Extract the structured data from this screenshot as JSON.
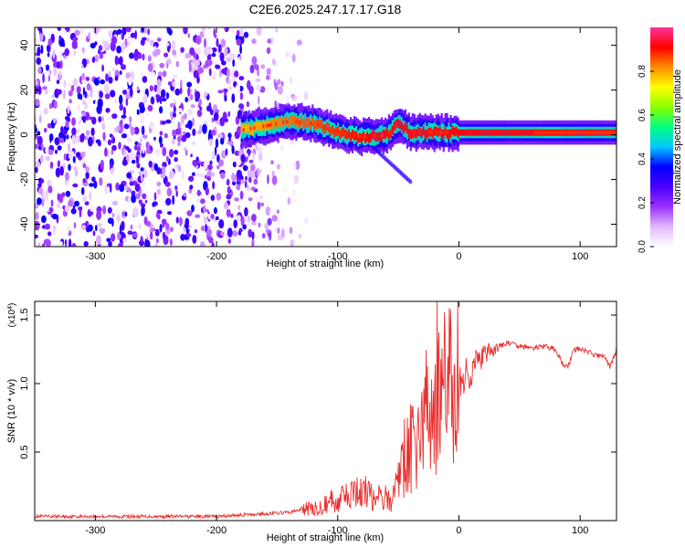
{
  "title": "C2E6.2025.247.17.17.G18",
  "chart_data": [
    {
      "type": "heatmap",
      "name": "spectrogram",
      "xlabel": "Height of straight line (km)",
      "ylabel": "Frequency (Hz)",
      "xlim": [
        -350,
        130
      ],
      "ylim": [
        -50,
        48
      ],
      "xticks": [
        -300,
        -200,
        -100,
        0,
        100
      ],
      "yticks": [
        -40,
        -20,
        0,
        20,
        40
      ],
      "signal_track": {
        "x": [
          -180,
          -160,
          -140,
          -120,
          -100,
          -80,
          -60,
          -50,
          -40,
          -20,
          0,
          40,
          80,
          125
        ],
        "freq": [
          2,
          4,
          6,
          5,
          1,
          -1,
          0,
          5,
          1,
          1,
          1,
          1,
          1,
          1
        ]
      },
      "noise_region_x": [
        -350,
        -130
      ],
      "colorbar": {
        "label": "Normalized spectral amplitude",
        "range": [
          0.0,
          1.0
        ],
        "ticks": [
          "0.0",
          "0.2",
          "0.4",
          "0.6",
          "0.8"
        ],
        "ticks_num": [
          0.0,
          0.2,
          0.4,
          0.6,
          0.8
        ],
        "colors": [
          "#ffffff",
          "#e2b7ff",
          "#9b30ff",
          "#4b00ff",
          "#0000ff",
          "#00c8ff",
          "#00ff80",
          "#8aff00",
          "#ffff00",
          "#ff8c00",
          "#ff0000",
          "#ff3399"
        ]
      }
    },
    {
      "type": "line",
      "name": "snr",
      "xlabel": "Height of straight line (km)",
      "ylabel": "SNR (10 * v/v)",
      "scale_label": "(x10",
      "scale_exp": "4",
      "scale_close": ")",
      "xlim": [
        -350,
        130
      ],
      "ylim": [
        0,
        1.6
      ],
      "xticks": [
        -300,
        -200,
        -100,
        0,
        100
      ],
      "yticks": [
        0.5,
        1.0,
        1.5
      ],
      "ytick_labels": [
        "0.5",
        "1.0",
        "1.5"
      ],
      "color": "#e8302e",
      "x": [
        -350,
        -300,
        -250,
        -200,
        -180,
        -160,
        -140,
        -130,
        -120,
        -110,
        -100,
        -90,
        -80,
        -70,
        -60,
        -55,
        -50,
        -45,
        -40,
        -35,
        -30,
        -25,
        -20,
        -15,
        -10,
        -5,
        0,
        10,
        20,
        30,
        40,
        50,
        60,
        70,
        80,
        85,
        90,
        95,
        100,
        110,
        115,
        120,
        125,
        130
      ],
      "y": [
        0.03,
        0.03,
        0.03,
        0.03,
        0.04,
        0.05,
        0.06,
        0.08,
        0.12,
        0.15,
        0.18,
        0.2,
        0.25,
        0.25,
        0.18,
        0.2,
        0.3,
        0.45,
        0.5,
        0.55,
        0.7,
        0.8,
        0.85,
        0.9,
        0.95,
        1.0,
        1.0,
        1.1,
        1.2,
        1.25,
        1.3,
        1.27,
        1.26,
        1.27,
        1.25,
        1.15,
        1.12,
        1.25,
        1.25,
        1.22,
        1.2,
        1.2,
        1.12,
        1.25
      ],
      "spikes": [
        {
          "x": -18,
          "y": 1.6
        },
        {
          "x": -8,
          "y": 1.55
        },
        {
          "x": -28,
          "y": 1.05
        },
        {
          "x": -40,
          "y": 0.85
        }
      ]
    }
  ]
}
